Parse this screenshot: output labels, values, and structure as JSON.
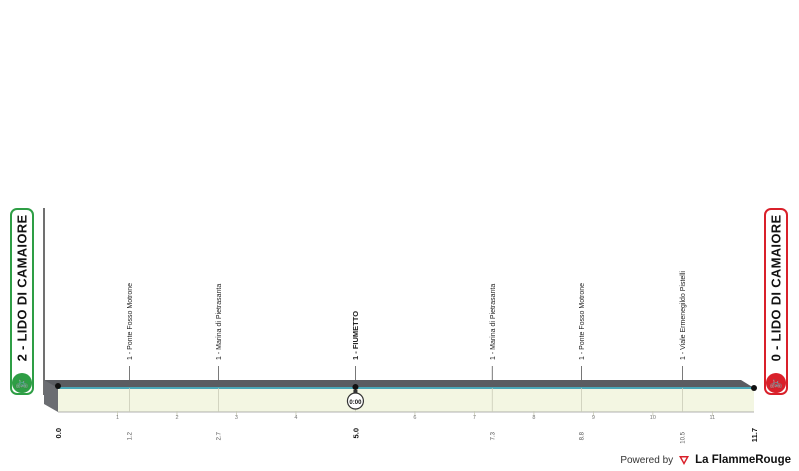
{
  "colors": {
    "top_band": "#5a5c61",
    "fill": "#f3f6e2",
    "line": "#4aa8b8",
    "start": "#2e9e45",
    "finish": "#d9202a"
  },
  "start_badge": {
    "label": "2 - LIDO DI CAMAIORE",
    "icon": "bicycle-icon"
  },
  "finish_badge": {
    "label": "0 - LIDO DI CAMAIORE",
    "icon": "bicycle-icon"
  },
  "footer": {
    "powered": "Powered by",
    "brand": "La FlammeRouge"
  },
  "chart_data": {
    "type": "area",
    "xlim": [
      0,
      11.7
    ],
    "profile": [
      [
        0,
        0
      ],
      [
        11.7,
        0
      ]
    ],
    "points": [
      {
        "km": 1.2,
        "label": "1 - Ponte Fosso Motrone",
        "bold": false
      },
      {
        "km": 2.7,
        "label": "1 - Marina di Pietrasanta",
        "bold": false
      },
      {
        "km": 5.0,
        "label": "1 - FIUMETTO",
        "bold": true
      },
      {
        "km": 7.3,
        "label": "1 - Marina di Pietrasanta",
        "bold": false
      },
      {
        "km": 8.8,
        "label": "1 - Ponte Fosso Motrone",
        "bold": false
      },
      {
        "km": 10.5,
        "label": "1 - Viale Ermenegildo Pistelli",
        "bold": false
      }
    ],
    "km_ticks": [
      1,
      2,
      3,
      4,
      6,
      7,
      8,
      9,
      10,
      11
    ],
    "major_ticks": [
      {
        "km": 0,
        "label": "0.0"
      },
      {
        "km": 5.0,
        "label": "5.0"
      },
      {
        "km": 11.7,
        "label": "11.7"
      }
    ],
    "minor_labels": [
      {
        "km": 1.2,
        "label": "1.2"
      },
      {
        "km": 2.7,
        "label": "2.7"
      },
      {
        "km": 7.3,
        "label": "7.3"
      },
      {
        "km": 8.8,
        "label": "8.8"
      },
      {
        "km": 10.5,
        "label": "10.5"
      }
    ],
    "timer": {
      "km": 5.0,
      "label": "0:00"
    }
  }
}
